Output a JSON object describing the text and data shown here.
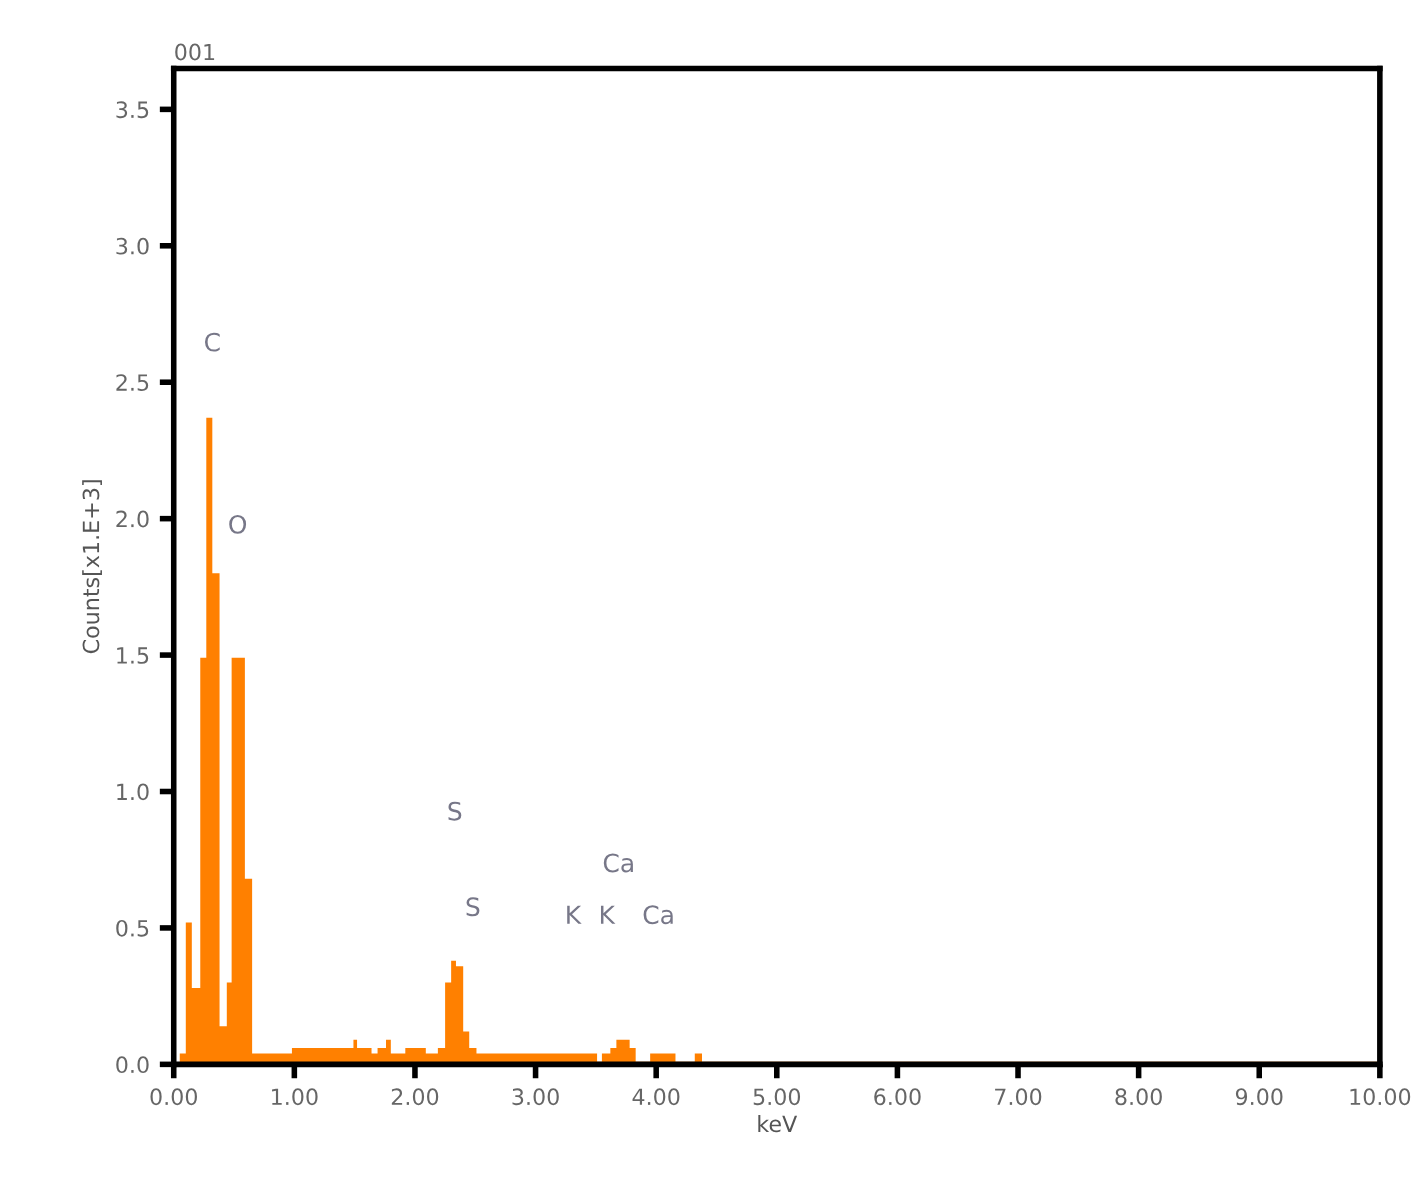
{
  "chart_data": {
    "type": "histogram",
    "title": "001",
    "xlabel": "keV",
    "ylabel": "Counts[x1.E+3]",
    "color": "#ff8000",
    "bins": [
      0.05,
      0.1,
      0.15,
      0.22,
      0.27,
      0.32,
      0.38,
      0.44,
      0.48,
      0.59,
      0.65,
      0.98,
      1.49,
      1.52,
      1.64,
      1.69,
      1.76,
      1.8,
      1.92,
      2.09,
      2.19,
      2.25,
      2.3,
      2.34,
      2.4,
      2.45,
      2.51,
      3.51,
      3.55,
      3.62,
      3.67,
      3.78,
      3.83,
      3.95,
      4.16,
      4.32,
      4.38,
      10.0
    ],
    "values": [
      0.04,
      0.52,
      0.28,
      1.49,
      2.37,
      1.8,
      0.14,
      0.3,
      1.49,
      0.68,
      0.04,
      0.06,
      0.09,
      0.06,
      0.04,
      0.06,
      0.09,
      0.04,
      0.06,
      0.04,
      0.06,
      0.3,
      0.38,
      0.36,
      0.12,
      0.06,
      0.04,
      0.01,
      0.04,
      0.06,
      0.09,
      0.06,
      0.01,
      0.04,
      0.01,
      0.04,
      0.01
    ],
    "xlim": [
      0,
      10
    ],
    "ylim": [
      0,
      3.65
    ],
    "xticks": [
      {
        "value": 0,
        "label": "0.00"
      },
      {
        "value": 1,
        "label": "1.00"
      },
      {
        "value": 2,
        "label": "2.00"
      },
      {
        "value": 3,
        "label": "3.00"
      },
      {
        "value": 4,
        "label": "4.00"
      },
      {
        "value": 5,
        "label": "5.00"
      },
      {
        "value": 6,
        "label": "6.00"
      },
      {
        "value": 7,
        "label": "7.00"
      },
      {
        "value": 8,
        "label": "8.00"
      },
      {
        "value": 9,
        "label": "9.00"
      },
      {
        "value": 10,
        "label": "10.00"
      }
    ],
    "yticks": [
      {
        "value": 0,
        "label": "0.0"
      },
      {
        "value": 0.5,
        "label": "0.5"
      },
      {
        "value": 1,
        "label": "1.0"
      },
      {
        "value": 1.5,
        "label": "1.5"
      },
      {
        "value": 2,
        "label": "2.0"
      },
      {
        "value": 2.5,
        "label": "2.5"
      },
      {
        "value": 3,
        "label": "3.0"
      },
      {
        "value": 3.5,
        "label": "3.5"
      }
    ],
    "annotations": [
      "C",
      "O",
      "S",
      "S",
      "Ca",
      "K",
      "K",
      "Ca"
    ],
    "grid": false,
    "legend": false
  }
}
